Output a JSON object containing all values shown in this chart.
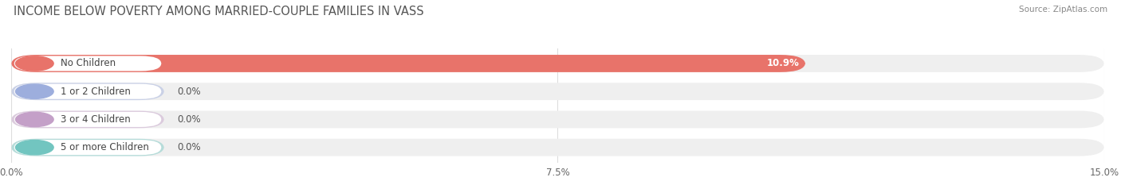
{
  "title": "INCOME BELOW POVERTY AMONG MARRIED-COUPLE FAMILIES IN VASS",
  "source": "Source: ZipAtlas.com",
  "categories": [
    "No Children",
    "1 or 2 Children",
    "3 or 4 Children",
    "5 or more Children"
  ],
  "values": [
    10.9,
    0.0,
    0.0,
    0.0
  ],
  "bar_colors": [
    "#e8736a",
    "#9daedd",
    "#c4a0c8",
    "#72c5c0"
  ],
  "background_color": "#ffffff",
  "bar_bg_color": "#efefef",
  "xlim": [
    0,
    15.0
  ],
  "xticks": [
    0.0,
    7.5,
    15.0
  ],
  "xtick_labels": [
    "0.0%",
    "7.5%",
    "15.0%"
  ],
  "title_fontsize": 10.5,
  "label_fontsize": 8.5,
  "bar_height": 0.62,
  "value_fontsize": 8.5,
  "grid_color": "#dddddd"
}
